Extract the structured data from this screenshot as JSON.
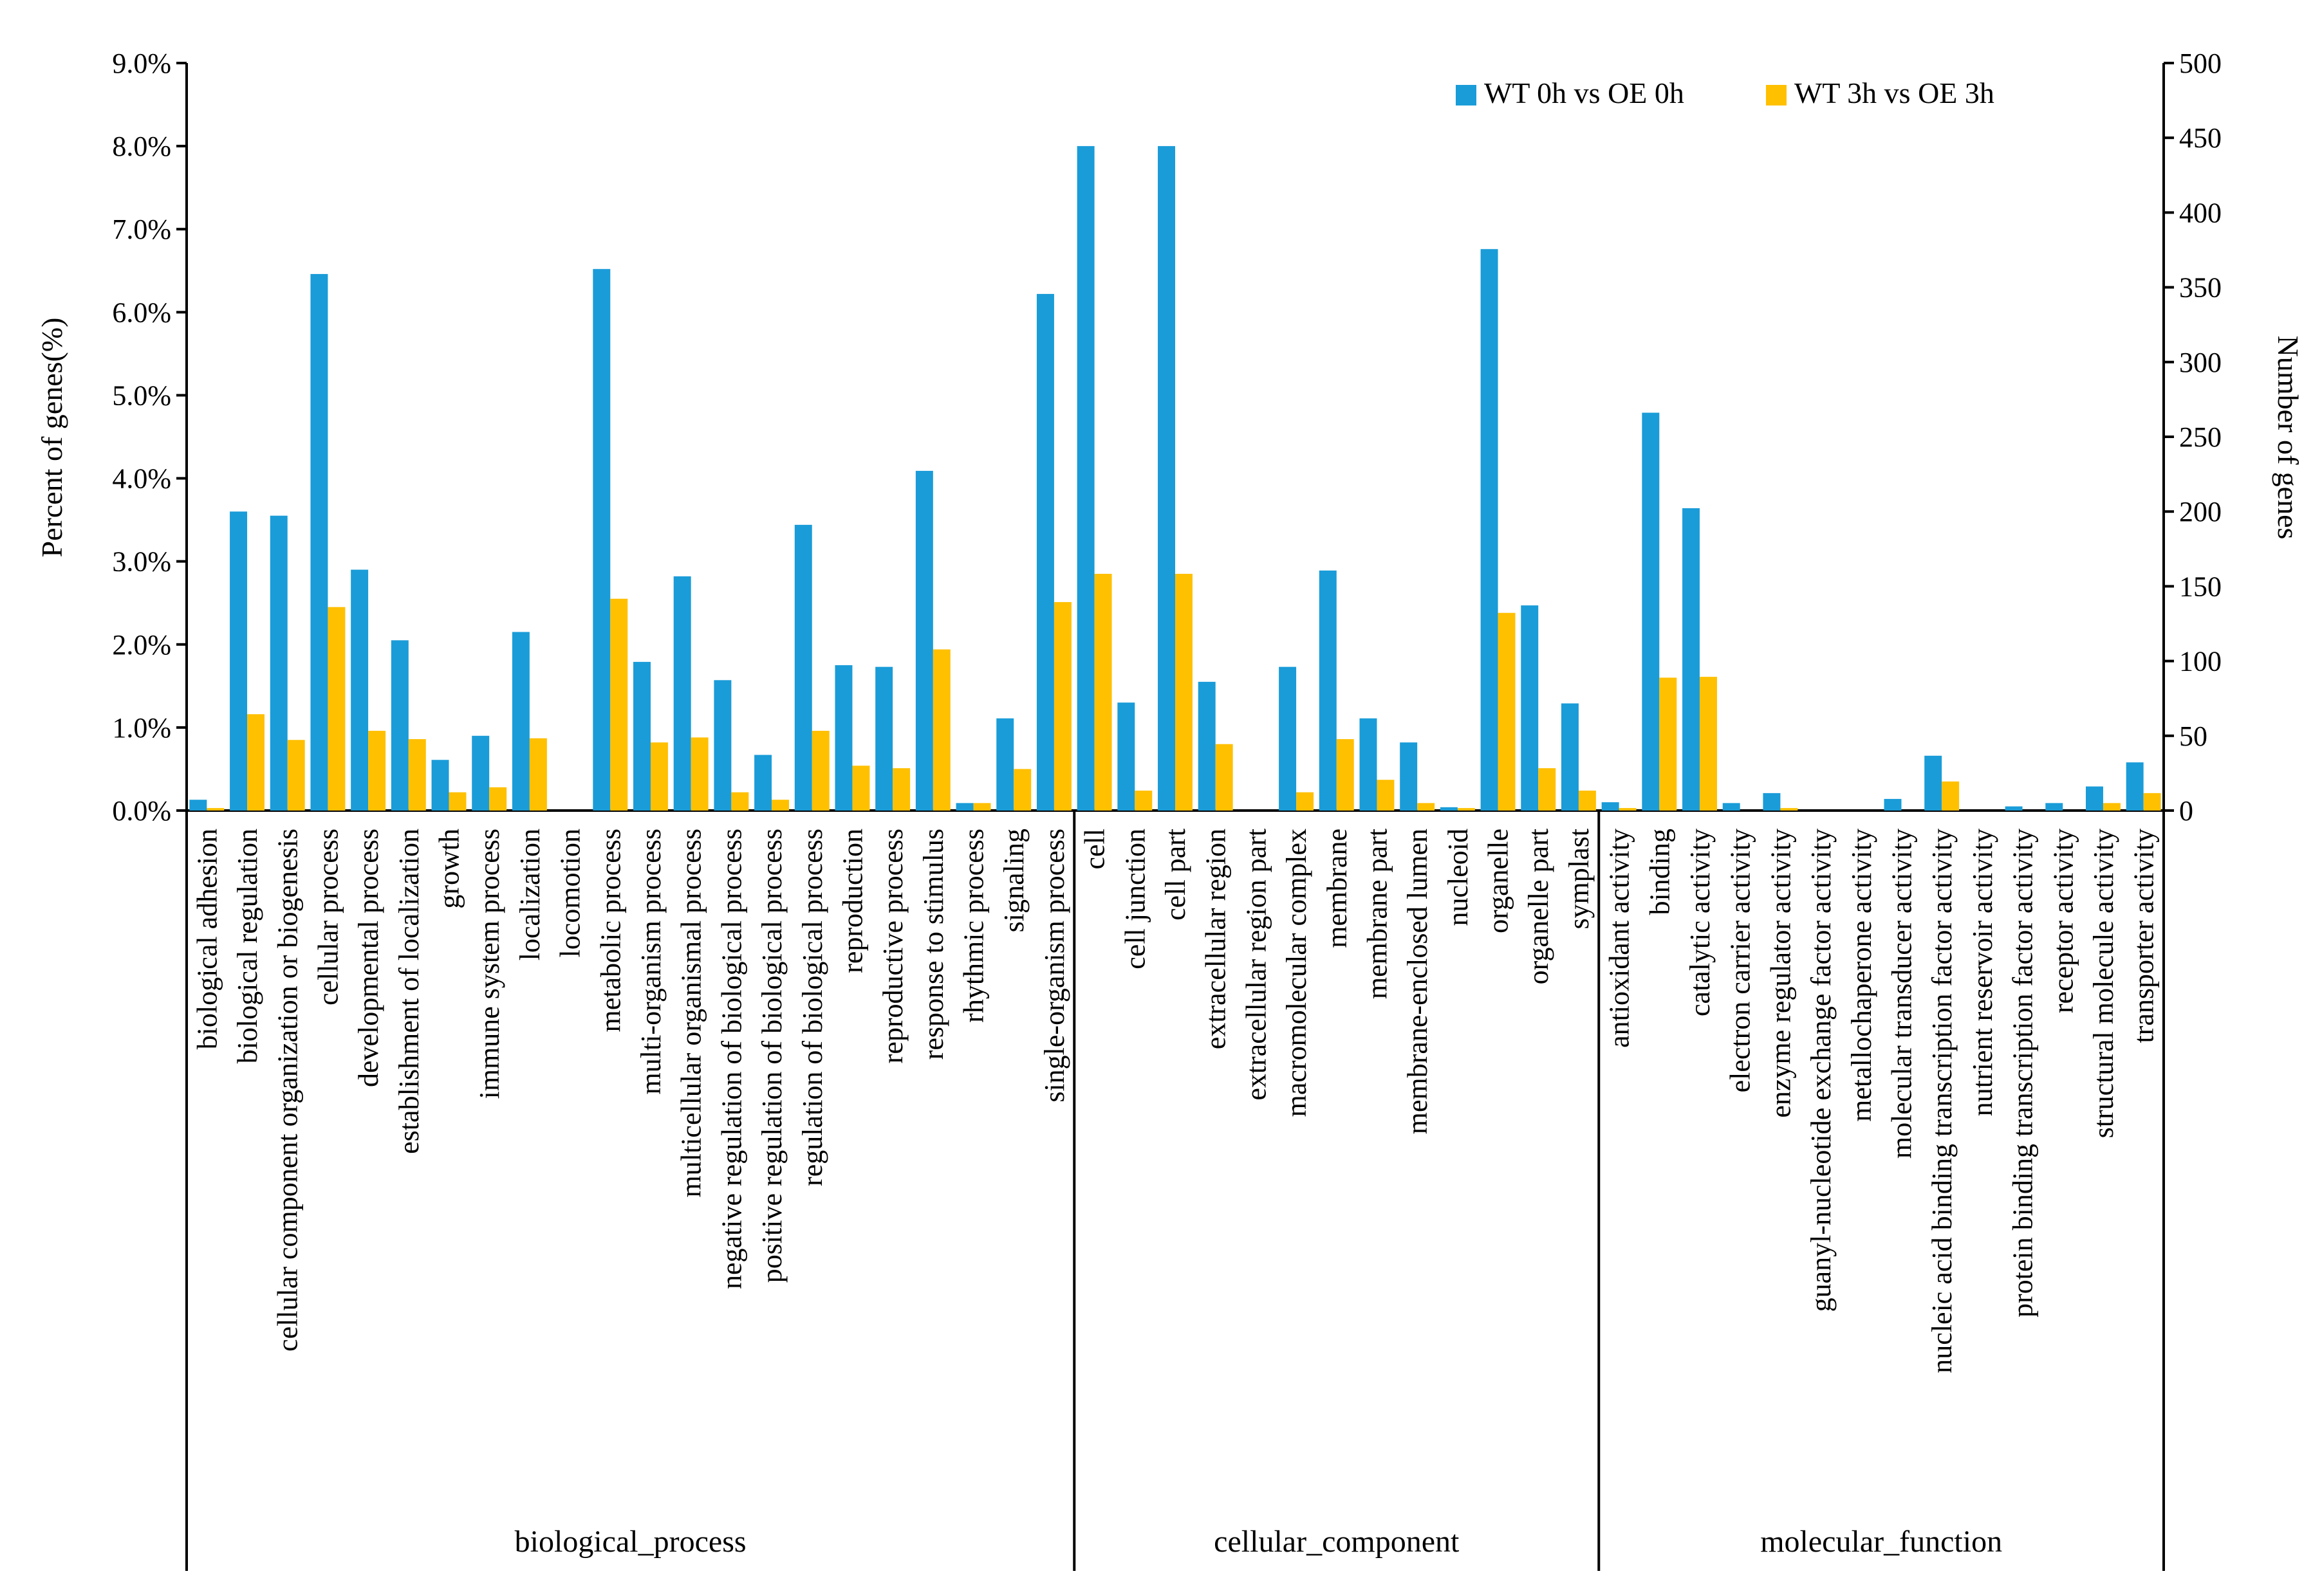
{
  "chart_data": {
    "type": "bar",
    "title": "",
    "ylabel_left": "Percent of  genes(%)",
    "ylabel_right": "Number  of   genes",
    "ylim_left": [
      0,
      9.0
    ],
    "ylim_right": [
      0,
      500
    ],
    "yticks_left": [
      "0.0%",
      "1.0%",
      "2.0%",
      "3.0%",
      "4.0%",
      "5.0%",
      "6.0%",
      "7.0%",
      "8.0%",
      "9.0%"
    ],
    "yticks_right": [
      "0",
      "50",
      "100",
      "150",
      "200",
      "250",
      "300",
      "350",
      "400",
      "450",
      "500"
    ],
    "legend_position": "top-right",
    "colors": {
      "series1": "#1a9cd8",
      "series2": "#ffc000"
    },
    "series": [
      {
        "name": "WT 0h vs OE 0h"
      },
      {
        "name": "WT 3h vs OE 3h"
      }
    ],
    "groups": [
      {
        "name": "biological_process",
        "start": 0,
        "end": 22
      },
      {
        "name": "cellular_component",
        "start": 22,
        "end": 35
      },
      {
        "name": "molecular_function",
        "start": 35,
        "end": 49
      }
    ],
    "categories": [
      "biological adhesion",
      "biological regulation",
      "cellular component organization or biogenesis",
      "cellular process",
      "developmental process",
      "establishment of localization",
      "growth",
      "immune system process",
      "localization",
      "locomotion",
      "metabolic process",
      "multi-organism process",
      "multicellular organismal process",
      "negative regulation of biological process",
      "positive regulation of biological process",
      "regulation of biological process",
      "reproduction",
      "reproductive process",
      "response to stimulus",
      "rhythmic process",
      "signaling",
      "single-organism process",
      "cell",
      "cell junction",
      "cell part",
      "extracellular region",
      "extracellular region part",
      "macromolecular complex",
      "membrane",
      "membrane part",
      "membrane-enclosed lumen",
      "nucleoid",
      "organelle",
      "organelle part",
      "symplast",
      "antioxidant activity",
      "binding",
      "catalytic activity",
      "electron carrier activity",
      "enzyme regulator activity",
      "guanyl-nucleotide exchange factor activity",
      "metallochaperone activity",
      "molecular transducer activity",
      "nucleic acid binding transcription factor activity",
      "nutrient reservoir activity",
      "protein binding transcription factor activity",
      "receptor activity",
      "structural molecule activity",
      "transporter activity"
    ],
    "values_series1": [
      0.13,
      3.6,
      3.55,
      6.46,
      2.9,
      2.05,
      0.61,
      0.9,
      2.15,
      0,
      6.52,
      1.79,
      2.82,
      1.57,
      0.67,
      3.44,
      1.75,
      1.73,
      4.09,
      0.09,
      1.11,
      6.22,
      8.0,
      1.3,
      8.0,
      1.55,
      0,
      1.73,
      2.89,
      1.11,
      0.82,
      0.04,
      6.76,
      2.47,
      1.29,
      0.1,
      4.79,
      3.64,
      0.09,
      0.21,
      0,
      0,
      0.14,
      0.66,
      0,
      0.05,
      0.09,
      0.29,
      0.58
    ],
    "values_series2": [
      0.03,
      1.16,
      0.85,
      2.45,
      0.96,
      0.86,
      0.22,
      0.28,
      0.87,
      0,
      2.55,
      0.82,
      0.88,
      0.22,
      0.13,
      0.96,
      0.54,
      0.51,
      1.94,
      0.09,
      0.5,
      2.51,
      2.85,
      0.24,
      2.85,
      0.8,
      0,
      0.22,
      0.86,
      0.37,
      0.09,
      0.03,
      2.38,
      0.51,
      0.24,
      0.03,
      1.6,
      1.61,
      0,
      0.03,
      0,
      0,
      0,
      0.35,
      0,
      0,
      0,
      0.09,
      0.21
    ]
  }
}
